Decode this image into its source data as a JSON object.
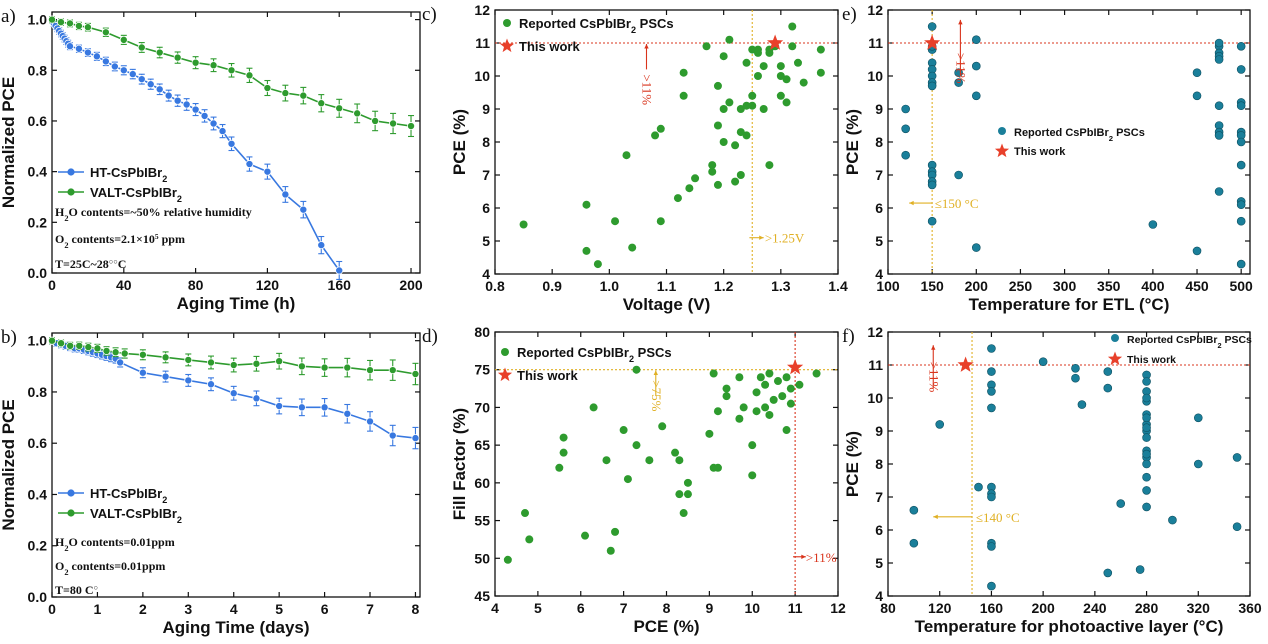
{
  "chart_data": [
    {
      "id": "a",
      "type": "line",
      "panel_label": "a)",
      "xlabel": "Aging Time (h)",
      "ylabel": "Normalized PCE",
      "xlim": [
        0,
        205
      ],
      "ylim": [
        0,
        1.03
      ],
      "xticks": [
        0,
        40,
        80,
        120,
        160,
        200
      ],
      "yticks": [
        0.0,
        0.2,
        0.4,
        0.6,
        0.8,
        1.0
      ],
      "series": [
        {
          "name": "HT-CsPbIBr2",
          "color": "#3878e0",
          "x": [
            0,
            1,
            2,
            3,
            4,
            5,
            6,
            7,
            8,
            9,
            10,
            15,
            20,
            25,
            30,
            35,
            40,
            45,
            50,
            55,
            60,
            65,
            70,
            75,
            80,
            85,
            90,
            95,
            100,
            110,
            120,
            130,
            140,
            150,
            160
          ],
          "y": [
            1.0,
            0.985,
            0.975,
            0.965,
            0.955,
            0.945,
            0.935,
            0.925,
            0.915,
            0.905,
            0.895,
            0.885,
            0.87,
            0.855,
            0.835,
            0.815,
            0.8,
            0.785,
            0.765,
            0.745,
            0.725,
            0.7,
            0.68,
            0.665,
            0.645,
            0.62,
            0.59,
            0.56,
            0.51,
            0.43,
            0.4,
            0.31,
            0.25,
            0.11,
            0.01
          ]
        },
        {
          "name": "VALT-CsPbIBr2",
          "color": "#2e9b2e",
          "x": [
            0,
            5,
            10,
            15,
            20,
            30,
            40,
            50,
            60,
            70,
            80,
            90,
            100,
            110,
            120,
            130,
            140,
            150,
            160,
            170,
            180,
            190,
            200
          ],
          "y": [
            1.0,
            0.99,
            0.985,
            0.975,
            0.97,
            0.95,
            0.92,
            0.89,
            0.87,
            0.85,
            0.83,
            0.82,
            0.8,
            0.78,
            0.73,
            0.71,
            0.7,
            0.67,
            0.65,
            0.63,
            0.6,
            0.59,
            0.58
          ]
        }
      ],
      "notes": [
        "H2O contents=~50% relative humidity",
        "O2 contents=2.1×10^5 ppm",
        "T=25°C~28°C"
      ],
      "notes_display": [
        {
          "a": "H",
          "sub": "2",
          "b": "O contents=~50% relative humidity"
        },
        {
          "a": "O",
          "sub": "2",
          "b": " contents=2.1×10",
          "sup": "5",
          "c": " ppm"
        },
        {
          "a": "T=25",
          "sup": "○",
          "b": "C~28",
          "sup2": "○",
          "c": "C"
        }
      ],
      "legend_display": [
        {
          "a": "HT-CsPbIBr",
          "sub": "2"
        },
        {
          "a": "VALT-CsPbIBr",
          "sub": "2"
        }
      ]
    },
    {
      "id": "b",
      "type": "line",
      "panel_label": "b)",
      "xlabel": "Aging Time (days)",
      "ylabel": "Normalized PCE",
      "xlim": [
        0,
        8.1
      ],
      "ylim": [
        0,
        1.03
      ],
      "xticks": [
        0,
        1,
        2,
        3,
        4,
        5,
        6,
        7,
        8
      ],
      "yticks": [
        0.0,
        0.2,
        0.4,
        0.6,
        0.8,
        1.0
      ],
      "series": [
        {
          "name": "HT-CsPbIBr2",
          "color": "#3878e0",
          "x": [
            0,
            0.1,
            0.2,
            0.3,
            0.4,
            0.5,
            0.6,
            0.7,
            0.8,
            0.9,
            1.0,
            1.1,
            1.2,
            1.3,
            1.4,
            1.5,
            2,
            2.5,
            3,
            3.5,
            4,
            4.5,
            5,
            5.5,
            6,
            6.5,
            7,
            7.5,
            8
          ],
          "y": [
            1.0,
            0.99,
            0.985,
            0.98,
            0.975,
            0.97,
            0.97,
            0.965,
            0.96,
            0.955,
            0.95,
            0.945,
            0.94,
            0.935,
            0.93,
            0.915,
            0.875,
            0.86,
            0.845,
            0.83,
            0.795,
            0.775,
            0.745,
            0.74,
            0.74,
            0.715,
            0.685,
            0.63,
            0.62
          ]
        },
        {
          "name": "VALT-CsPbIBr2",
          "color": "#2e9b2e",
          "x": [
            0,
            0.2,
            0.4,
            0.6,
            0.8,
            1.0,
            1.2,
            1.4,
            1.6,
            2,
            2.5,
            3,
            3.5,
            4,
            4.5,
            5,
            5.5,
            6,
            6.5,
            7,
            7.5,
            8
          ],
          "y": [
            1.0,
            0.99,
            0.98,
            0.98,
            0.975,
            0.97,
            0.96,
            0.955,
            0.95,
            0.945,
            0.935,
            0.925,
            0.915,
            0.905,
            0.91,
            0.92,
            0.9,
            0.895,
            0.895,
            0.885,
            0.885,
            0.87
          ]
        }
      ],
      "notes": [
        "H2O contents=0.01ppm",
        "O2 contents=0.01ppm",
        "T=80 °C"
      ],
      "notes_display": [
        {
          "a": "H",
          "sub": "2",
          "b": "O contents=0.01ppm"
        },
        {
          "a": "O",
          "sub": "2",
          "b": " contents=0.01ppm"
        },
        {
          "a": "T=80 ",
          "sup": "○",
          "b": "C"
        }
      ],
      "legend_display": [
        {
          "a": "HT-CsPbIBr",
          "sub": "2"
        },
        {
          "a": "VALT-CsPbIBr",
          "sub": "2"
        }
      ]
    },
    {
      "id": "c",
      "type": "scatter",
      "panel_label": "c)",
      "xlabel": "Voltage (V)",
      "ylabel": "PCE (%)",
      "xlim": [
        0.8,
        1.4
      ],
      "ylim": [
        4,
        12
      ],
      "xticks": [
        0.8,
        0.9,
        1.0,
        1.1,
        1.2,
        1.3,
        1.4
      ],
      "yticks": [
        4,
        5,
        6,
        7,
        8,
        9,
        10,
        11,
        12
      ],
      "legend": [
        {
          "a": "Reported CsPbIBr",
          "sub": "2",
          "b": " PSCs"
        },
        {
          "a": "This work"
        }
      ],
      "reported": {
        "color": "#2e9b2e",
        "x": [
          0.85,
          0.96,
          0.96,
          0.98,
          1.01,
          1.03,
          1.04,
          1.08,
          1.09,
          1.09,
          1.12,
          1.13,
          1.13,
          1.14,
          1.15,
          1.17,
          1.18,
          1.18,
          1.19,
          1.19,
          1.19,
          1.2,
          1.2,
          1.2,
          1.21,
          1.21,
          1.22,
          1.22,
          1.23,
          1.23,
          1.23,
          1.24,
          1.24,
          1.24,
          1.25,
          1.25,
          1.25,
          1.26,
          1.26,
          1.26,
          1.27,
          1.27,
          1.28,
          1.28,
          1.28,
          1.29,
          1.3,
          1.3,
          1.3,
          1.31,
          1.31,
          1.32,
          1.32,
          1.33,
          1.34,
          1.37,
          1.37
        ],
        "y": [
          5.5,
          6.1,
          4.7,
          4.3,
          5.6,
          7.6,
          4.8,
          8.2,
          8.4,
          5.6,
          6.3,
          9.4,
          10.1,
          6.6,
          6.9,
          10.9,
          7.3,
          7.1,
          6.7,
          8.5,
          9.7,
          8.0,
          9.0,
          10.6,
          9.2,
          11.1,
          7.9,
          6.8,
          7.0,
          8.3,
          9.0,
          8.2,
          9.1,
          10.4,
          9.1,
          9.4,
          10.8,
          10.0,
          10.8,
          10.7,
          9.0,
          10.3,
          7.3,
          10.7,
          10.8,
          10.9,
          9.4,
          10.0,
          10.3,
          9.2,
          9.9,
          10.9,
          11.5,
          10.4,
          9.8,
          10.8,
          10.1
        ]
      },
      "this_work": {
        "x": 1.29,
        "y": 11.0,
        "color": "#e8402a"
      },
      "hline": {
        "y": 11,
        "color": "#d9341c"
      },
      "vline": {
        "x": 1.25,
        "color": "#e0b024"
      },
      "annotations": [
        {
          "text": ">11%",
          "color": "#d9341c"
        },
        {
          "text": ">1.25V",
          "color": "#e0b024"
        }
      ]
    },
    {
      "id": "d",
      "type": "scatter",
      "panel_label": "d)",
      "xlabel": "PCE (%)",
      "ylabel": "Fill Factor (%)",
      "xlim": [
        4,
        12
      ],
      "ylim": [
        45,
        80
      ],
      "xticks": [
        4,
        5,
        6,
        7,
        8,
        9,
        10,
        11,
        12
      ],
      "yticks": [
        45,
        50,
        55,
        60,
        65,
        70,
        75,
        80
      ],
      "legend": [
        {
          "a": "Reported CsPbIBr",
          "sub": "2",
          "b": " PSCs"
        },
        {
          "a": "This work"
        }
      ],
      "reported": {
        "color": "#2e9b2e",
        "x": [
          4.3,
          4.7,
          4.8,
          5.5,
          5.6,
          5.6,
          6.1,
          6.3,
          6.6,
          6.7,
          6.8,
          7.0,
          7.1,
          7.3,
          7.3,
          7.6,
          7.9,
          8.2,
          8.3,
          8.3,
          8.4,
          8.5,
          8.5,
          9.0,
          9.1,
          9.1,
          9.2,
          9.2,
          9.4,
          9.4,
          9.7,
          9.7,
          9.8,
          10.0,
          10.0,
          10.1,
          10.1,
          10.2,
          10.3,
          10.3,
          10.4,
          10.4,
          10.5,
          10.6,
          10.7,
          10.8,
          10.8,
          10.9,
          10.9,
          11.1,
          11.5
        ],
        "y": [
          49.8,
          56.0,
          52.5,
          62.0,
          64.0,
          66.0,
          53.0,
          70.0,
          63.0,
          51.0,
          53.5,
          67.0,
          60.5,
          65.0,
          75.0,
          63.0,
          67.5,
          64.0,
          63.0,
          58.5,
          56.0,
          60.0,
          58.5,
          66.5,
          62.0,
          74.5,
          69.5,
          62.0,
          71.5,
          72.5,
          68.5,
          74.0,
          70.0,
          61.0,
          65.0,
          72.0,
          69.5,
          74.0,
          70.0,
          73.0,
          69.0,
          74.5,
          71.0,
          73.5,
          71.5,
          67.0,
          74.0,
          72.5,
          70.5,
          73.0,
          74.5
        ]
      },
      "this_work": {
        "x": 11.0,
        "y": 75.3,
        "color": "#e8402a"
      },
      "hline": {
        "y": 75,
        "color": "#e0b024"
      },
      "vline": {
        "x": 11,
        "color": "#d9341c"
      },
      "annotations": [
        {
          "text": ">75%",
          "color": "#e0b024"
        },
        {
          "text": ">11%",
          "color": "#d9341c"
        }
      ]
    },
    {
      "id": "e",
      "type": "scatter",
      "panel_label": "e)",
      "xlabel": "Temperature for ETL (°C)",
      "ylabel": "PCE (%)",
      "xlim": [
        100,
        510
      ],
      "ylim": [
        4,
        12
      ],
      "xticks": [
        100,
        150,
        200,
        250,
        300,
        350,
        400,
        450,
        500
      ],
      "yticks": [
        4,
        5,
        6,
        7,
        8,
        9,
        10,
        11,
        12
      ],
      "legend": [
        {
          "a": "Reported CsPbIBr",
          "sub": "2",
          "b": " PSCs"
        },
        {
          "a": "This work"
        }
      ],
      "reported": {
        "color": "#1a7f9a",
        "x": [
          120,
          120,
          120,
          150,
          150,
          150,
          150,
          150,
          150,
          150,
          150,
          150,
          150,
          150,
          150,
          150,
          150,
          180,
          180,
          180,
          200,
          200,
          200,
          200,
          400,
          450,
          450,
          450,
          475,
          475,
          475,
          475,
          475,
          475,
          475,
          475,
          475,
          475,
          500,
          500,
          500,
          500,
          500,
          500,
          500,
          500,
          500,
          500,
          500,
          500
        ],
        "y": [
          9.0,
          8.4,
          7.6,
          11.5,
          10.8,
          10.4,
          10.2,
          10.0,
          9.8,
          9.7,
          7.3,
          7.1,
          7.0,
          6.8,
          6.7,
          5.6,
          10.9,
          10.1,
          9.8,
          7.0,
          11.1,
          10.3,
          9.4,
          4.8,
          5.5,
          10.1,
          9.4,
          4.7,
          10.9,
          10.7,
          10.6,
          10.5,
          9.1,
          8.5,
          8.3,
          8.2,
          6.5,
          11.0,
          10.9,
          10.2,
          9.2,
          9.1,
          8.3,
          8.2,
          8.0,
          7.3,
          6.2,
          6.1,
          5.6,
          4.3
        ]
      },
      "this_work": {
        "x": 150,
        "y": 11.0,
        "color": "#e8402a"
      },
      "hline": {
        "y": 11,
        "color": "#d9341c"
      },
      "vline": {
        "x": 150,
        "color": "#e0b024"
      },
      "annotations": [
        {
          "text": ">11%",
          "color": "#d9341c"
        },
        {
          "text": "≤150 °C",
          "color": "#e0b024"
        }
      ]
    },
    {
      "id": "f",
      "type": "scatter",
      "panel_label": "f)",
      "xlabel": "Temperature for photoactive layer (°C)",
      "ylabel": "PCE (%)",
      "xlim": [
        80,
        360
      ],
      "ylim": [
        4,
        12
      ],
      "xticks": [
        80,
        120,
        160,
        200,
        240,
        280,
        320,
        360
      ],
      "yticks": [
        4,
        5,
        6,
        7,
        8,
        9,
        10,
        11,
        12
      ],
      "legend": [
        {
          "a": "Reported CsPbIBr",
          "sub": "2",
          "b": " PSCs"
        },
        {
          "a": "This work"
        }
      ],
      "reported": {
        "color": "#1a7f9a",
        "x": [
          100,
          100,
          120,
          150,
          160,
          160,
          160,
          160,
          160,
          160,
          160,
          160,
          160,
          160,
          160,
          200,
          225,
          225,
          230,
          250,
          250,
          250,
          260,
          275,
          280,
          280,
          280,
          280,
          280,
          280,
          280,
          280,
          280,
          280,
          280,
          280,
          280,
          280,
          280,
          280,
          280,
          280,
          300,
          320,
          320,
          350,
          350
        ],
        "y": [
          6.6,
          5.6,
          9.2,
          7.3,
          11.5,
          10.8,
          10.4,
          10.2,
          9.7,
          7.3,
          7.1,
          7.0,
          5.6,
          5.5,
          4.3,
          11.1,
          10.9,
          10.6,
          9.8,
          10.8,
          10.3,
          4.7,
          6.8,
          4.8,
          10.7,
          10.5,
          10.2,
          9.9,
          9.5,
          9.2,
          9.0,
          8.8,
          8.4,
          8.2,
          8.0,
          7.6,
          7.2,
          6.7,
          9.4,
          9.1,
          8.3,
          10.0,
          6.3,
          9.4,
          8.0,
          8.2,
          6.1
        ]
      },
      "this_work": {
        "x": 140,
        "y": 11.0,
        "color": "#e8402a"
      },
      "hline": {
        "y": 11,
        "color": "#d9341c"
      },
      "vline": {
        "x": 145,
        "color": "#e0b024"
      },
      "annotations": [
        {
          "text": ">11%",
          "color": "#d9341c"
        },
        {
          "text": "≤140 °C",
          "color": "#e0b024"
        }
      ]
    }
  ]
}
